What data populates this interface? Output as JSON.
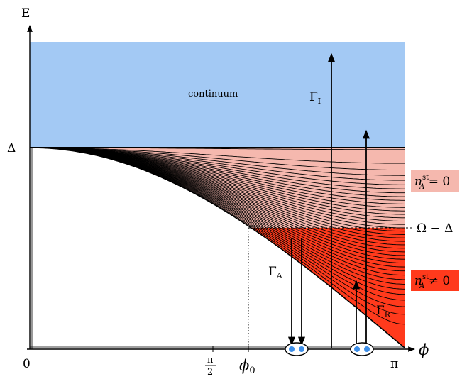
{
  "axes": {
    "y_label": "E",
    "x_label": "ϕ",
    "gap_label": "Δ",
    "origin_label": "0",
    "pi_half_numerator": "π",
    "pi_half_denominator": "2",
    "phi0_base": "ϕ",
    "phi0_sub": "0",
    "pi_label": "π"
  },
  "regions": {
    "continuum_label": "continuum",
    "threshold_label": "Ω − Δ",
    "n_zero_label": {
      "base": "n",
      "sup": "st",
      "sub": "A",
      "rel": " = 0"
    },
    "n_nonzero_label": {
      "base": "n",
      "sup": "st",
      "sub": "A",
      "rel": " ≠ 0"
    }
  },
  "rates": {
    "ionization": {
      "base": "Γ",
      "sub": "I"
    },
    "andreev": {
      "base": "Γ",
      "sub": "A"
    },
    "recombination": {
      "base": "Γ",
      "sub": "R"
    }
  },
  "colors": {
    "continuum": "#a3c9f4",
    "pink_region": "#f5b8ae",
    "red_region": "#ff3a1c",
    "quasiparticle": "#3d8ee8"
  }
}
